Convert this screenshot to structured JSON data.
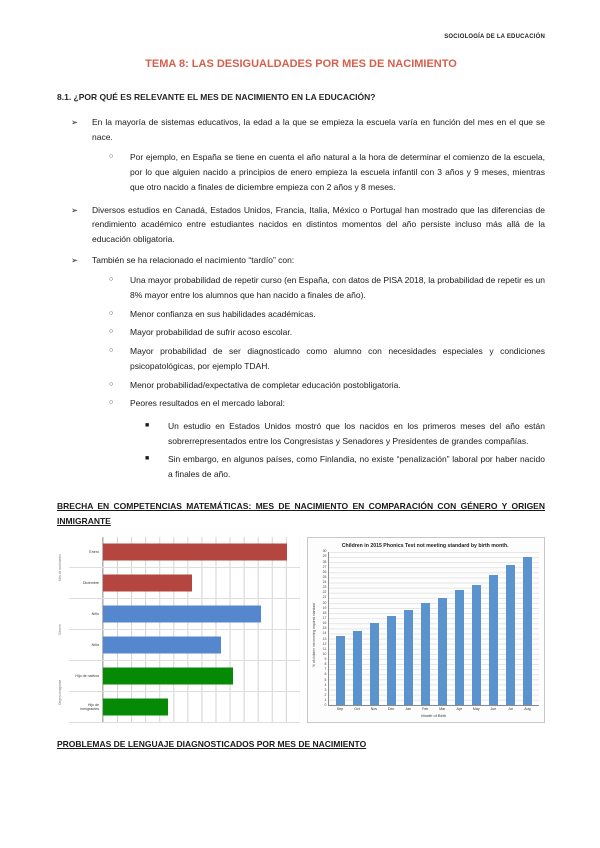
{
  "page": {
    "header_right": "SOCIOLOGÍA DE LA EDUCACIÓN",
    "title": "TEMA 8: LAS DESIGUALDADES POR MES DE NACIMIENTO",
    "section_heading": "8.1. ¿POR QUÉ ES RELEVANTE EL MES DE NACIMIENTO EN LA EDUCACIÓN?",
    "subheading_math_gap": "BRECHA EN COMPETENCIAS MATEMÁTICAS: MES DE NACIMIENTO EN COMPARACIÓN CON GÉNERO Y ORIGEN INMIGRANTE",
    "subheading_language": "PROBLEMAS DE LENGUAJE DIAGNOSTICADOS POR MES DE NACIMIENTO"
  },
  "markers": {
    "l1": "➢",
    "l2": "○",
    "l3": "■"
  },
  "colors": {
    "title_accent": "#D4604C",
    "red_bar": "#B4453F",
    "blue_bar": "#5487CE",
    "green_bar": "#068A06",
    "phonics_bar": "#5B93CE"
  },
  "bullets": [
    {
      "level": 1,
      "text": "En la mayoría de sistemas educativos, la edad a la que se empieza la escuela varía en función del mes en el que se nace."
    },
    {
      "level": 2,
      "text": "Por ejemplo, en España se tiene en cuenta el año natural a la hora de determinar el comienzo de la escuela, por lo que alguien nacido a principios de enero empieza la escuela infantil con 3 años y 9 meses, mientras que otro nacido a finales de diciembre empieza con 2 años y 8 meses."
    },
    {
      "level": 1,
      "text": "Diversos estudios en Canadá, Estados Unidos, Francia, Italia, México o Portugal han mostrado que las diferencias de rendimiento académico entre estudiantes nacidos en distintos momentos del año persiste incluso más allá de la educación obligatoria."
    },
    {
      "level": 1,
      "text": "También se ha relacionado el nacimiento “tardío” con:"
    },
    {
      "level": 2,
      "text": "Una mayor probabilidad de repetir curso (en España, con datos de PISA 2018, la probabilidad de repetir es un 8% mayor entre los alumnos que han nacido a finales de año)."
    },
    {
      "level": 2,
      "text": "Menor confianza en sus habilidades académicas."
    },
    {
      "level": 2,
      "text": "Mayor probabilidad de sufrir acoso escolar."
    },
    {
      "level": 2,
      "text": "Mayor probabilidad de ser diagnosticado como alumno con necesidades especiales y condiciones psicopatológicas, por ejemplo TDAH."
    },
    {
      "level": 2,
      "text": "Menor probabilidad/expectativa de completar educación postobligatoria."
    },
    {
      "level": 2,
      "text": "Peores resultados en el mercado laboral:"
    },
    {
      "level": 3,
      "text": "Un estudio en Estados Unidos mostró que los nacidos en los primeros meses del año están sobrerrepresentados entre los Congresistas y Senadores y Presidentes de grandes compañías."
    },
    {
      "level": 3,
      "text": "Sin embargo, en algunos países, como Finlandia, no existe “penalización” laboral por haber nacido a finales de año."
    }
  ],
  "chart_data": [
    {
      "type": "bar",
      "orientation": "horizontal",
      "title": "",
      "categories": [
        "Enero",
        "Diciembre",
        "Niño",
        "Niña",
        "Hijo de nativos",
        "Hijo de inmigrantes"
      ],
      "values": [
        93,
        45,
        80,
        60,
        66,
        33
      ],
      "xlim": [
        0,
        100
      ],
      "axis_tick_labels_visible": false,
      "grid": true,
      "bar_colors": [
        "#B4453F",
        "#B4453F",
        "#5487CE",
        "#5487CE",
        "#068A06",
        "#068A06"
      ],
      "group_labels": [
        "Mes de nacimiento",
        "Género",
        "Origen inmigrante"
      ]
    },
    {
      "type": "bar",
      "orientation": "vertical",
      "title": "Children in 2015 Phonics Test not meeting standard by birth month.",
      "categories": [
        "Sep",
        "Oct",
        "Nov",
        "Dec",
        "Jan",
        "Feb",
        "Mar",
        "Apr",
        "May",
        "Jun",
        "Jul",
        "Aug"
      ],
      "values": [
        13.5,
        14.5,
        16,
        17.5,
        18.5,
        20,
        21,
        22.5,
        23.5,
        25.5,
        27.5,
        29
      ],
      "xlabel": "Month of Birth",
      "ylabel": "% of children not meeting required standard",
      "ylim": [
        0,
        30
      ],
      "ytick_step": 1,
      "grid": true,
      "legend": false,
      "bar_color": "#5B93CE"
    }
  ]
}
